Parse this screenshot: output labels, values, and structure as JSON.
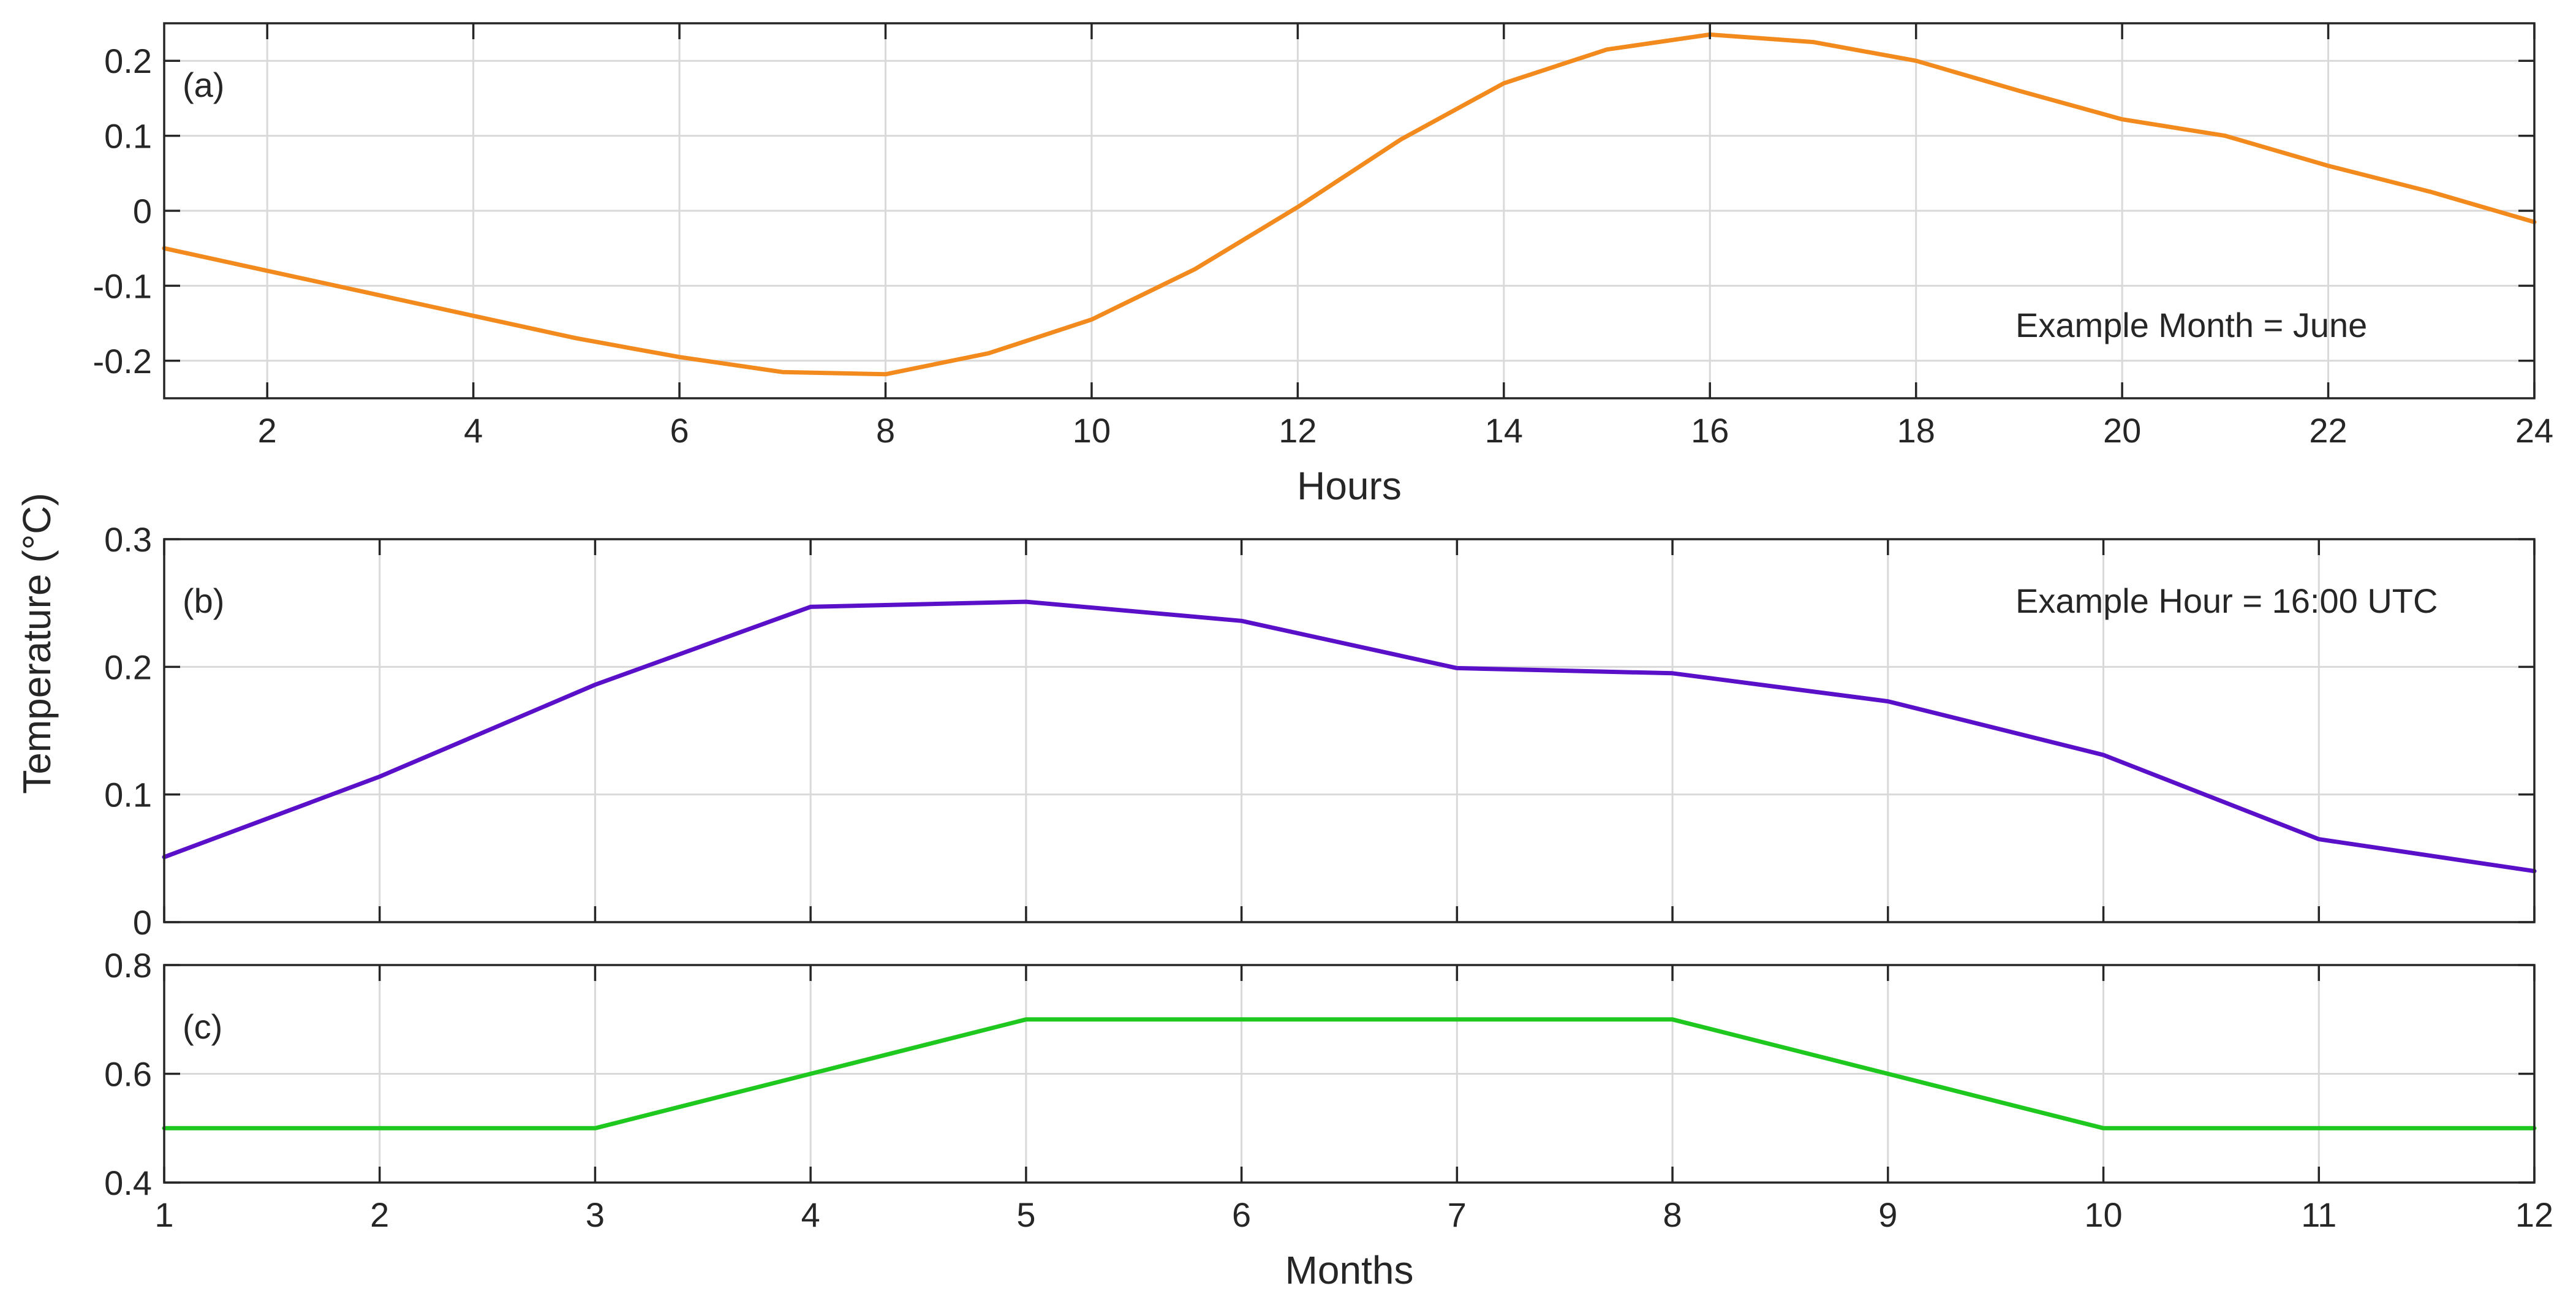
{
  "figure": {
    "shared_ylabel": "Temperature (°C)"
  },
  "chart_data": [
    {
      "type": "line",
      "panel_label": "(a)",
      "annotation": "Example Month = June",
      "xlabel": "Hours",
      "ylabel": "",
      "xlim": [
        1,
        24
      ],
      "ylim": [
        -0.25,
        0.25
      ],
      "xticks": [
        2,
        4,
        6,
        8,
        10,
        12,
        14,
        16,
        18,
        20,
        22,
        24
      ],
      "yticks": [
        -0.2,
        -0.1,
        0,
        0.1,
        0.2
      ],
      "grid": true,
      "color": "#f28a1e",
      "x": [
        1,
        2,
        3,
        4,
        5,
        6,
        7,
        8,
        9,
        10,
        11,
        12,
        13,
        14,
        15,
        16,
        17,
        18,
        19,
        20,
        21,
        22,
        23,
        24
      ],
      "y": [
        -0.05,
        -0.08,
        -0.11,
        -0.14,
        -0.17,
        -0.195,
        -0.215,
        -0.218,
        -0.19,
        -0.145,
        -0.078,
        0.005,
        0.095,
        0.17,
        0.215,
        0.235,
        0.225,
        0.2,
        0.16,
        0.122,
        0.1,
        0.06,
        0.025,
        -0.015
      ]
    },
    {
      "type": "line",
      "panel_label": "(b)",
      "annotation": "Example Hour = 16:00 UTC",
      "xlabel": "",
      "ylabel": "",
      "xlim": [
        1,
        12
      ],
      "ylim": [
        0,
        0.3
      ],
      "xticks": [
        1,
        2,
        3,
        4,
        5,
        6,
        7,
        8,
        9,
        10,
        11,
        12
      ],
      "yticks": [
        0,
        0.1,
        0.2,
        0.3
      ],
      "show_xticklabels": false,
      "grid": true,
      "color": "#5a0fc8",
      "x": [
        1,
        2,
        3,
        4,
        5,
        6,
        7,
        8,
        9,
        10,
        11,
        12
      ],
      "y": [
        0.051,
        0.114,
        0.186,
        0.247,
        0.251,
        0.236,
        0.199,
        0.195,
        0.173,
        0.131,
        0.065,
        0.04
      ]
    },
    {
      "type": "line",
      "panel_label": "(c)",
      "annotation": "",
      "xlabel": "Months",
      "ylabel": "",
      "xlim": [
        1,
        12
      ],
      "ylim": [
        0.4,
        0.8
      ],
      "xticks": [
        1,
        2,
        3,
        4,
        5,
        6,
        7,
        8,
        9,
        10,
        11,
        12
      ],
      "yticks": [
        0.4,
        0.6,
        0.8
      ],
      "grid": true,
      "color": "#1ec81e",
      "x": [
        1,
        2,
        3,
        4,
        5,
        6,
        7,
        8,
        9,
        10,
        11,
        12
      ],
      "y": [
        0.5,
        0.5,
        0.5,
        0.6,
        0.7,
        0.7,
        0.7,
        0.7,
        0.6,
        0.5,
        0.5,
        0.5
      ]
    }
  ]
}
